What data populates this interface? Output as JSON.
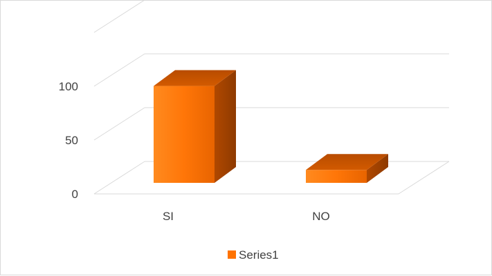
{
  "chart_data": {
    "type": "bar",
    "style": "3d-column",
    "categories": [
      "SI",
      "NO"
    ],
    "series": [
      {
        "name": "Series1",
        "values": [
          90,
          12
        ],
        "color": "#ff7300"
      }
    ],
    "y_ticks": [
      0,
      50,
      100
    ],
    "ylim": [
      0,
      150
    ],
    "grid": true,
    "legend": {
      "position": "bottom",
      "entries": [
        "Series1"
      ]
    }
  },
  "colors": {
    "bar_front": "#ff7a0c",
    "bar_top": "#cc5500",
    "bar_side": "#a84300",
    "grid": "#d9d9d9",
    "axis_text": "#404040"
  }
}
